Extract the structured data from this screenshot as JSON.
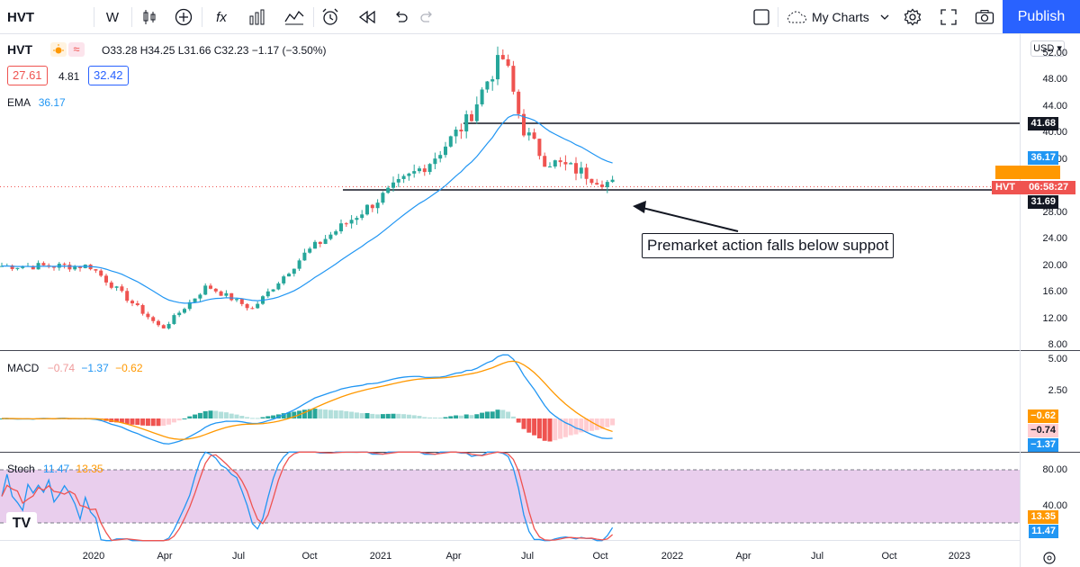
{
  "toolbar": {
    "symbol": "HVT",
    "interval": "W",
    "candles_icon": "candles-icon",
    "add_icon": "plus-circle-icon",
    "fx_label": "fx",
    "layout_label": "My Charts",
    "publish_label": "Publish"
  },
  "legend": {
    "symbol": "HVT",
    "ohlc": "O33.28 H34.25 L31.66 C32.23 −1.17 (−3.50%)",
    "bid": "27.61",
    "spread": "4.81",
    "ask": "32.42",
    "ema_label": "EMA",
    "ema_value": "36.17",
    "macd_label": "MACD",
    "macd_v1": "−0.74",
    "macd_v2": "−1.37",
    "macd_v3": "−0.62",
    "stoch_label": "Stoch",
    "stoch_v1": "11.47",
    "stoch_v2": "13.35"
  },
  "price_axis": {
    "currency": "USD",
    "ticks": [
      "52.00",
      "48.00",
      "44.00",
      "40.00",
      "36.00",
      "32.00",
      "28.00",
      "24.00",
      "20.00",
      "16.00",
      "12.00",
      "8.00"
    ],
    "tags": {
      "resistance": "41.68",
      "ema": "36.17",
      "last_symbol": "HVT",
      "countdown": "06:58:27",
      "support": "31.69"
    }
  },
  "macd_axis": {
    "ticks": [
      "5.00",
      "2.50"
    ],
    "tags": [
      "−0.62",
      "−0.74",
      "−1.37"
    ]
  },
  "stoch_axis": {
    "ticks": [
      "80.00",
      "40.00"
    ],
    "tags": [
      "13.35",
      "11.47"
    ]
  },
  "x_axis": {
    "labels": [
      "2020",
      "Apr",
      "Jul",
      "Oct",
      "2021",
      "Apr",
      "Jul",
      "Oct",
      "2022",
      "Apr",
      "Jul",
      "Oct",
      "2023"
    ]
  },
  "annotation": "Premarket action falls below suppot",
  "colors": {
    "up": "#26a69a",
    "down": "#ef5350",
    "ema": "#2196f3",
    "signal": "#ff9800",
    "stoch_band": "#e1bee7"
  },
  "chart_data": {
    "type": "candlestick",
    "timeframe": "weekly",
    "levels": {
      "resistance": 41.68,
      "support": 31.69
    },
    "ohlc_path_approx": [
      [
        "2019-12",
        20.0
      ],
      [
        "2020-02",
        20.0
      ],
      [
        "2020-04",
        10.5
      ],
      [
        "2020-06",
        17.0
      ],
      [
        "2020-08",
        13.5
      ],
      [
        "2020-10",
        22.0
      ],
      [
        "2020-12",
        30.0
      ],
      [
        "2021-02",
        36.0
      ],
      [
        "2021-04",
        42.0
      ],
      [
        "2021-05",
        49.0
      ],
      [
        "2021-06",
        51.5
      ],
      [
        "2021-07",
        41.0
      ],
      [
        "2021-08",
        36.0
      ],
      [
        "2021-09",
        34.5
      ],
      [
        "2021-10",
        33.0
      ],
      [
        "2021-11",
        32.23
      ]
    ],
    "last_candle": {
      "open": 33.28,
      "high": 34.25,
      "low": 31.66,
      "close": 32.23
    },
    "ema_last": 36.17,
    "macd": {
      "macd": -0.74,
      "signal": -1.37,
      "hist": -0.62
    },
    "stoch": {
      "k": 11.47,
      "d": 13.35,
      "upper": 80,
      "lower": 20
    }
  }
}
